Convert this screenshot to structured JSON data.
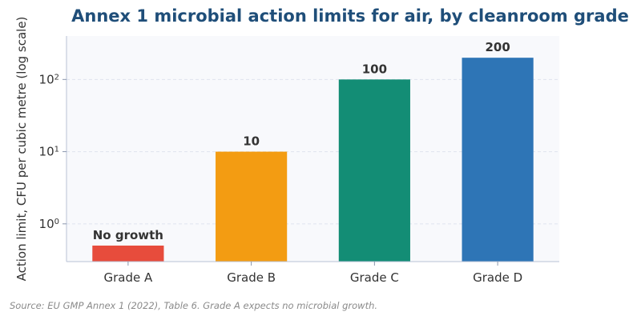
{
  "chart_data": {
    "type": "bar",
    "title": "Annex 1 microbial action limits for air, by cleanroom grade",
    "ylabel": "Action limit, CFU per cubic metre (log scale)",
    "yscale": "log",
    "ylim": [
      0.3,
      400
    ],
    "yticks": [
      {
        "value": 1,
        "base": "10",
        "exp": "0"
      },
      {
        "value": 10,
        "base": "10",
        "exp": "1"
      },
      {
        "value": 100,
        "base": "10",
        "exp": "2"
      }
    ],
    "grid": "horizontal dashed",
    "categories": [
      "Grade A",
      "Grade B",
      "Grade C",
      "Grade D"
    ],
    "values": [
      0.5,
      10,
      100,
      200
    ],
    "data_labels": [
      "No growth",
      "10",
      "100",
      "200"
    ],
    "colors": [
      "#e74c3c",
      "#f39c12",
      "#138d75",
      "#2e75b6"
    ],
    "note": "Source: EU GMP Annex 1 (2022), Table 6. Grade A expects no microbial growth."
  }
}
